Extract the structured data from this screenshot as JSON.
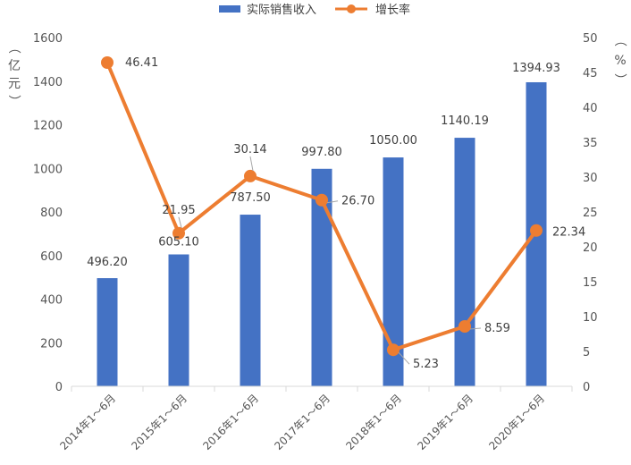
{
  "chart_data": {
    "type": "bar+line",
    "categories": [
      "2014年1～6月",
      "2015年1～6月",
      "2016年1～6月",
      "2017年1～6月",
      "2018年1～6月",
      "2019年1～6月",
      "2020年1～6月"
    ],
    "series": [
      {
        "name": "实际销售收入",
        "type": "bar",
        "axis": "left",
        "color": "#4472C4",
        "values": [
          496.2,
          605.1,
          787.5,
          997.8,
          1050.0,
          1140.19,
          1394.93
        ],
        "labels": [
          "496.20",
          "605.10",
          "787.50",
          "997.80",
          "1050.00",
          "1140.19",
          "1394.93"
        ]
      },
      {
        "name": "增长率",
        "type": "line",
        "axis": "right",
        "color": "#ED7D31",
        "values": [
          46.41,
          21.95,
          30.14,
          26.7,
          5.23,
          8.59,
          22.34
        ],
        "labels": [
          "46.41",
          "21.95",
          "30.14",
          "26.70",
          "5.23",
          "8.59",
          "22.34"
        ]
      }
    ],
    "y_left": {
      "label": "（亿元）",
      "min": 0,
      "max": 1600,
      "ticks": [
        0,
        200,
        400,
        600,
        800,
        1000,
        1200,
        1400,
        1600
      ]
    },
    "y_right": {
      "label": "（%）",
      "min": 0,
      "max": 50,
      "ticks": [
        0,
        5,
        10,
        15,
        20,
        25,
        30,
        35,
        40,
        45,
        50
      ]
    },
    "legend_position": "top-center",
    "grid": false
  }
}
